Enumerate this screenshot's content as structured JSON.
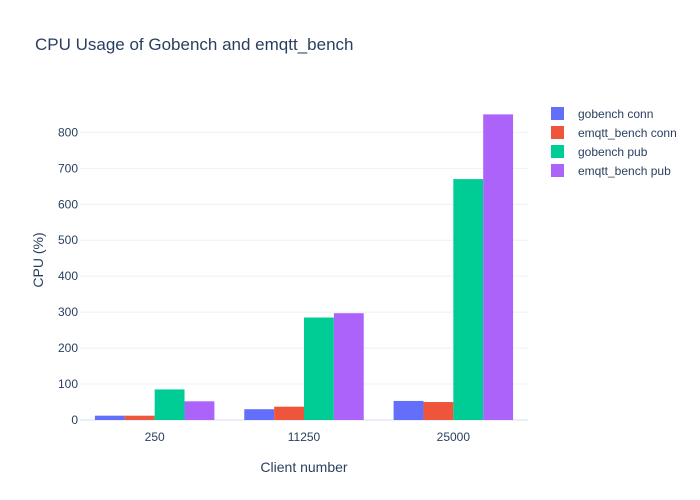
{
  "chart_data": {
    "type": "bar",
    "title": "CPU Usage of Gobench and emqtt_bench",
    "xlabel": "Client number",
    "ylabel": "CPU (%)",
    "categories": [
      "250",
      "11250",
      "25000"
    ],
    "ylim": [
      0,
      890
    ],
    "yticks": [
      0,
      100,
      200,
      300,
      400,
      500,
      600,
      700,
      800
    ],
    "grid": true,
    "legend_position": "top-right",
    "series": [
      {
        "name": "gobench conn",
        "color": "#636efa",
        "values": [
          12,
          30,
          53
        ]
      },
      {
        "name": "emqtt_bench conn",
        "color": "#ef553b",
        "values": [
          12,
          37,
          50
        ]
      },
      {
        "name": "gobench pub",
        "color": "#00cc96",
        "values": [
          85,
          285,
          670
        ]
      },
      {
        "name": "emqtt_bench pub",
        "color": "#ab63fa",
        "values": [
          52,
          297,
          850
        ]
      }
    ]
  }
}
